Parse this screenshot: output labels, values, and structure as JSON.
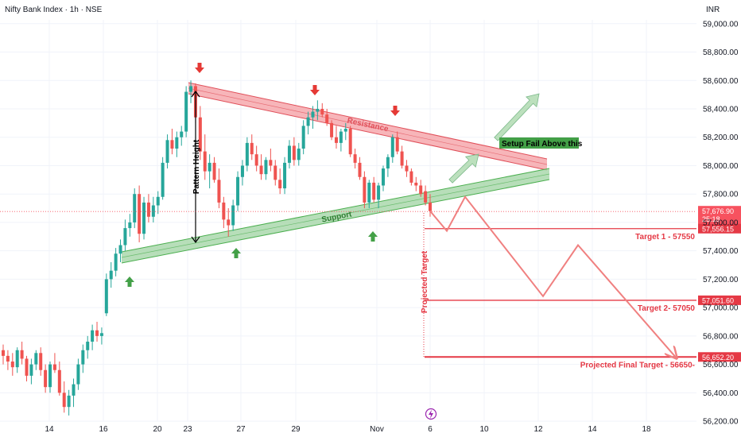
{
  "title": "Nifty Bank Index · 1h · NSE",
  "currency": "INR",
  "colors": {
    "up": "#26a69a",
    "down": "#ef5350",
    "resistance_fill": "#f5a3a8",
    "resistance_edge": "#e0505a",
    "support_fill": "#a5d6a7",
    "support_edge": "#4caf50",
    "target_line": "#e53945",
    "projection": "#f08080",
    "arrow_red": "#e53935",
    "arrow_green": "#43a047",
    "grid": "#f0f3fa",
    "current_price_bg": "#f7525f",
    "setup_fail_bg": "#43a047"
  },
  "chart_data": {
    "type": "candlestick",
    "title": "Nifty Bank Index · 1h · NSE",
    "x_tick_labels": [
      "14",
      "16",
      "20",
      "23",
      "27",
      "29",
      "Nov",
      "6",
      "10",
      "12",
      "14",
      "18"
    ],
    "y_ticks": [
      56200,
      56400,
      56600,
      56800,
      57000,
      57200,
      57400,
      57600,
      57800,
      58000,
      58200,
      58400,
      58600,
      58800,
      59000
    ],
    "y_tick_labels": [
      "56,200.00",
      "56,400.00",
      "56,600.00",
      "56,800.00",
      "57,000.00",
      "57,200.00",
      "57,400.00",
      "57,600.00",
      "57,800.00",
      "58,000.00",
      "58,200.00",
      "58,400.00",
      "58,600.00",
      "58,800.00",
      "59,000.00"
    ],
    "ylim": [
      56150,
      59150
    ],
    "candles": [
      [
        56700,
        56740,
        56600,
        56660
      ],
      [
        56660,
        56700,
        56560,
        56620
      ],
      [
        56620,
        56680,
        56520,
        56580
      ],
      [
        56580,
        56720,
        56540,
        56700
      ],
      [
        56700,
        56760,
        56600,
        56640
      ],
      [
        56640,
        56660,
        56480,
        56520
      ],
      [
        56520,
        56640,
        56460,
        56600
      ],
      [
        56600,
        56700,
        56560,
        56680
      ],
      [
        56680,
        56720,
        56520,
        56560
      ],
      [
        56560,
        56600,
        56400,
        56440
      ],
      [
        56440,
        56620,
        56400,
        56600
      ],
      [
        56600,
        56680,
        56540,
        56560
      ],
      [
        56560,
        56620,
        56380,
        56400
      ],
      [
        56400,
        56480,
        56260,
        56300
      ],
      [
        56300,
        56420,
        56240,
        56380
      ],
      [
        56380,
        56500,
        56300,
        56460
      ],
      [
        56460,
        56640,
        56420,
        56600
      ],
      [
        56600,
        56740,
        56540,
        56700
      ],
      [
        56700,
        56800,
        56640,
        56760
      ],
      [
        56760,
        56880,
        56700,
        56840
      ],
      [
        56840,
        56900,
        56760,
        56800
      ],
      [
        56800,
        56860,
        56740,
        56820
      ],
      [
        56960,
        57240,
        56940,
        57200
      ],
      [
        57200,
        57320,
        57140,
        57260
      ],
      [
        57260,
        57420,
        57220,
        57380
      ],
      [
        57380,
        57480,
        57320,
        57440
      ],
      [
        57440,
        57620,
        57400,
        57560
      ],
      [
        57560,
        57660,
        57500,
        57600
      ],
      [
        57600,
        57840,
        57560,
        57800
      ],
      [
        57800,
        57860,
        57460,
        57520
      ],
      [
        57520,
        57780,
        57480,
        57740
      ],
      [
        57740,
        57800,
        57600,
        57640
      ],
      [
        57640,
        57780,
        57600,
        57720
      ],
      [
        57720,
        57820,
        57660,
        57780
      ],
      [
        57780,
        58060,
        57760,
        58020
      ],
      [
        58020,
        58220,
        57980,
        58180
      ],
      [
        58180,
        58260,
        58080,
        58120
      ],
      [
        58120,
        58240,
        58060,
        58200
      ],
      [
        58200,
        58280,
        58140,
        58240
      ],
      [
        58240,
        58560,
        58200,
        58520
      ],
      [
        58520,
        58600,
        58440,
        58560
      ],
      [
        58560,
        58580,
        58300,
        58340
      ],
      [
        58340,
        58420,
        58040,
        58100
      ],
      [
        58100,
        58220,
        57900,
        57960
      ],
      [
        57960,
        58080,
        57840,
        58020
      ],
      [
        58020,
        58060,
        57880,
        57900
      ],
      [
        57900,
        57980,
        57700,
        57740
      ],
      [
        57740,
        57780,
        57560,
        57620
      ],
      [
        57620,
        57700,
        57500,
        57580
      ],
      [
        57580,
        57760,
        57540,
        57720
      ],
      [
        57720,
        57960,
        57680,
        57920
      ],
      [
        57920,
        58040,
        57860,
        58000
      ],
      [
        58000,
        58200,
        57960,
        58160
      ],
      [
        58160,
        58220,
        58040,
        58080
      ],
      [
        58080,
        58140,
        57960,
        58000
      ],
      [
        58000,
        58080,
        57900,
        57940
      ],
      [
        57940,
        58060,
        57900,
        58040
      ],
      [
        58040,
        58120,
        57960,
        58000
      ],
      [
        58000,
        58040,
        57860,
        57900
      ],
      [
        57900,
        57980,
        57800,
        57840
      ],
      [
        57840,
        58060,
        57800,
        58020
      ],
      [
        58020,
        58180,
        57980,
        58140
      ],
      [
        58140,
        58200,
        58000,
        58040
      ],
      [
        58040,
        58160,
        58000,
        58120
      ],
      [
        58120,
        58320,
        58080,
        58280
      ],
      [
        58280,
        58380,
        58220,
        58340
      ],
      [
        58340,
        58420,
        58260,
        58380
      ],
      [
        58380,
        58460,
        58320,
        58400
      ],
      [
        58400,
        58440,
        58340,
        58360
      ],
      [
        58360,
        58400,
        58280,
        58300
      ],
      [
        58300,
        58320,
        58180,
        58200
      ],
      [
        58200,
        58280,
        58120,
        58160
      ],
      [
        58160,
        58260,
        58100,
        58240
      ],
      [
        58240,
        58300,
        58180,
        58260
      ],
      [
        58260,
        58280,
        58060,
        58080
      ],
      [
        58080,
        58120,
        57980,
        58020
      ],
      [
        58020,
        58060,
        57900,
        57920
      ],
      [
        57920,
        57960,
        57700,
        57740
      ],
      [
        57740,
        57900,
        57700,
        57880
      ],
      [
        57880,
        57920,
        57740,
        57760
      ],
      [
        57760,
        57880,
        57700,
        57860
      ],
      [
        57860,
        58000,
        57820,
        57980
      ],
      [
        57980,
        58080,
        57920,
        58060
      ],
      [
        58060,
        58220,
        58020,
        58200
      ],
      [
        58200,
        58240,
        58080,
        58100
      ],
      [
        58100,
        58140,
        57980,
        58000
      ],
      [
        58000,
        58040,
        57920,
        57960
      ],
      [
        57960,
        57980,
        57860,
        57880
      ],
      [
        57880,
        57920,
        57820,
        57860
      ],
      [
        57860,
        57900,
        57780,
        57800
      ],
      [
        57820,
        57860,
        57720,
        57740
      ],
      [
        57740,
        57800,
        57640,
        57680
      ]
    ],
    "annotations": {
      "resistance_label": "Resistance",
      "support_label": "Support",
      "pattern_height_label": "Pattern Height",
      "projected_target_label": "Projected Target",
      "setup_fail_label": "Setup Fail Above this"
    },
    "levels": [
      {
        "price": 57676.9,
        "label": "57,676.90",
        "sub": "25:18",
        "kind": "current"
      },
      {
        "price": 57556.15,
        "label": "57,556.15",
        "text": "Target 1 - 57550",
        "kind": "target"
      },
      {
        "price": 57051.6,
        "label": "57,051.60",
        "text": "Target 2- 57050",
        "kind": "target"
      },
      {
        "price": 56652.2,
        "label": "56,652.20",
        "text": "Projected Final Target - 56650-",
        "kind": "target"
      }
    ],
    "projection_path": [
      57680,
      57540,
      57780,
      57080,
      57440,
      56650
    ]
  }
}
